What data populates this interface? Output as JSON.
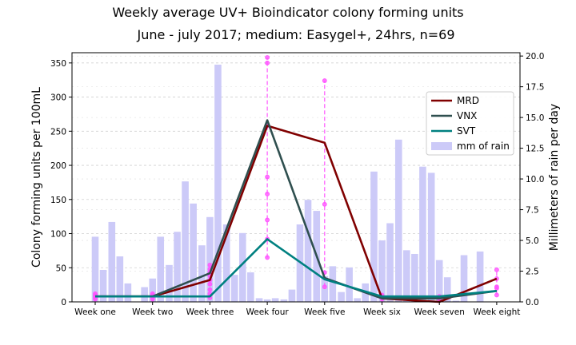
{
  "chart_data": {
    "type": "bar+line",
    "title": "Weekly average UV+ Bioindicator colony forming units",
    "subtitle": "June - july 2017; medium: Easygel+, 24hrs, n=69",
    "ylabel": "Colony forming units per 100mL",
    "y2label": "Millimeters of rain per day",
    "ylim": [
      0,
      365
    ],
    "y2lim": [
      0,
      20.27
    ],
    "yticks": [
      0,
      50,
      100,
      150,
      200,
      250,
      300,
      350
    ],
    "y2ticks": [
      0.0,
      2.5,
      5.0,
      7.5,
      10.0,
      12.5,
      15.0,
      17.5,
      20.0
    ],
    "categories": [
      "Week one",
      "Week two",
      "Week three",
      "Week four",
      "Week five",
      "Week six",
      "Week seven",
      "Week eight"
    ],
    "series": [
      {
        "name": "MRD",
        "color": "#800000",
        "values": [
          8,
          8,
          32,
          258,
          233,
          5,
          0,
          34
        ]
      },
      {
        "name": "VNX",
        "color": "#2f4f4f",
        "values": [
          8,
          8,
          42,
          266,
          35,
          5,
          5,
          16
        ]
      },
      {
        "name": "SVT",
        "color": "#008080",
        "values": [
          8,
          8,
          8,
          92,
          33,
          8,
          8,
          16
        ]
      }
    ],
    "rain": {
      "name": "mm of rain",
      "color": "#cccaf8",
      "week_index": [
        0.0,
        0.14,
        0.29,
        0.43,
        0.57,
        0.71,
        0.86,
        1.0,
        1.14,
        1.29,
        1.43,
        1.57,
        1.71,
        1.86,
        2.0,
        2.14,
        2.29,
        2.43,
        2.57,
        2.71,
        2.86,
        3.0,
        3.14,
        3.29,
        3.43,
        3.57,
        3.71,
        3.86,
        4.0,
        4.14,
        4.29,
        4.43,
        4.57,
        4.71,
        4.86,
        5.0,
        5.14,
        5.29,
        5.43,
        5.57,
        5.71,
        5.86,
        6.0,
        6.14,
        6.29,
        6.43,
        6.57,
        6.71,
        6.86,
        7.0
      ],
      "values": [
        5.3,
        2.6,
        6.5,
        3.7,
        1.5,
        0.0,
        1.2,
        1.9,
        5.3,
        3.0,
        5.7,
        9.8,
        8.0,
        4.6,
        6.9,
        19.3,
        6.3,
        2.2,
        5.6,
        2.4,
        0.3,
        0.2,
        0.3,
        0.2,
        1.0,
        6.3,
        8.3,
        7.4,
        2.1,
        2.9,
        0.8,
        2.8,
        0.3,
        1.5,
        10.6,
        5.0,
        6.4,
        13.2,
        4.2,
        3.9,
        11.0,
        10.5,
        3.4,
        2.0,
        0.1,
        3.8,
        0.0,
        4.1,
        0.0,
        0.0
      ]
    },
    "samples": [
      {
        "week_index": 0,
        "values": [
          4,
          6,
          8,
          10,
          12
        ]
      },
      {
        "week_index": 1,
        "values": [
          4,
          6,
          8,
          10,
          12
        ]
      },
      {
        "week_index": 2,
        "values": [
          6,
          12,
          18,
          26,
          32,
          38,
          44,
          48,
          54
        ]
      },
      {
        "week_index": 3,
        "values": [
          65,
          92,
          120,
          158,
          183,
          258,
          350,
          358
        ]
      },
      {
        "week_index": 4,
        "values": [
          22,
          43,
          143,
          324
        ]
      },
      {
        "week_index": 5,
        "values": [
          4,
          6,
          8,
          10
        ]
      },
      {
        "week_index": 6,
        "values": [
          4,
          6,
          8
        ]
      },
      {
        "week_index": 7,
        "values": [
          10,
          20,
          22,
          34,
          47
        ]
      }
    ],
    "sample_color": "#ff55ff",
    "legend_position": "right",
    "grid": "horizontal dashed"
  }
}
